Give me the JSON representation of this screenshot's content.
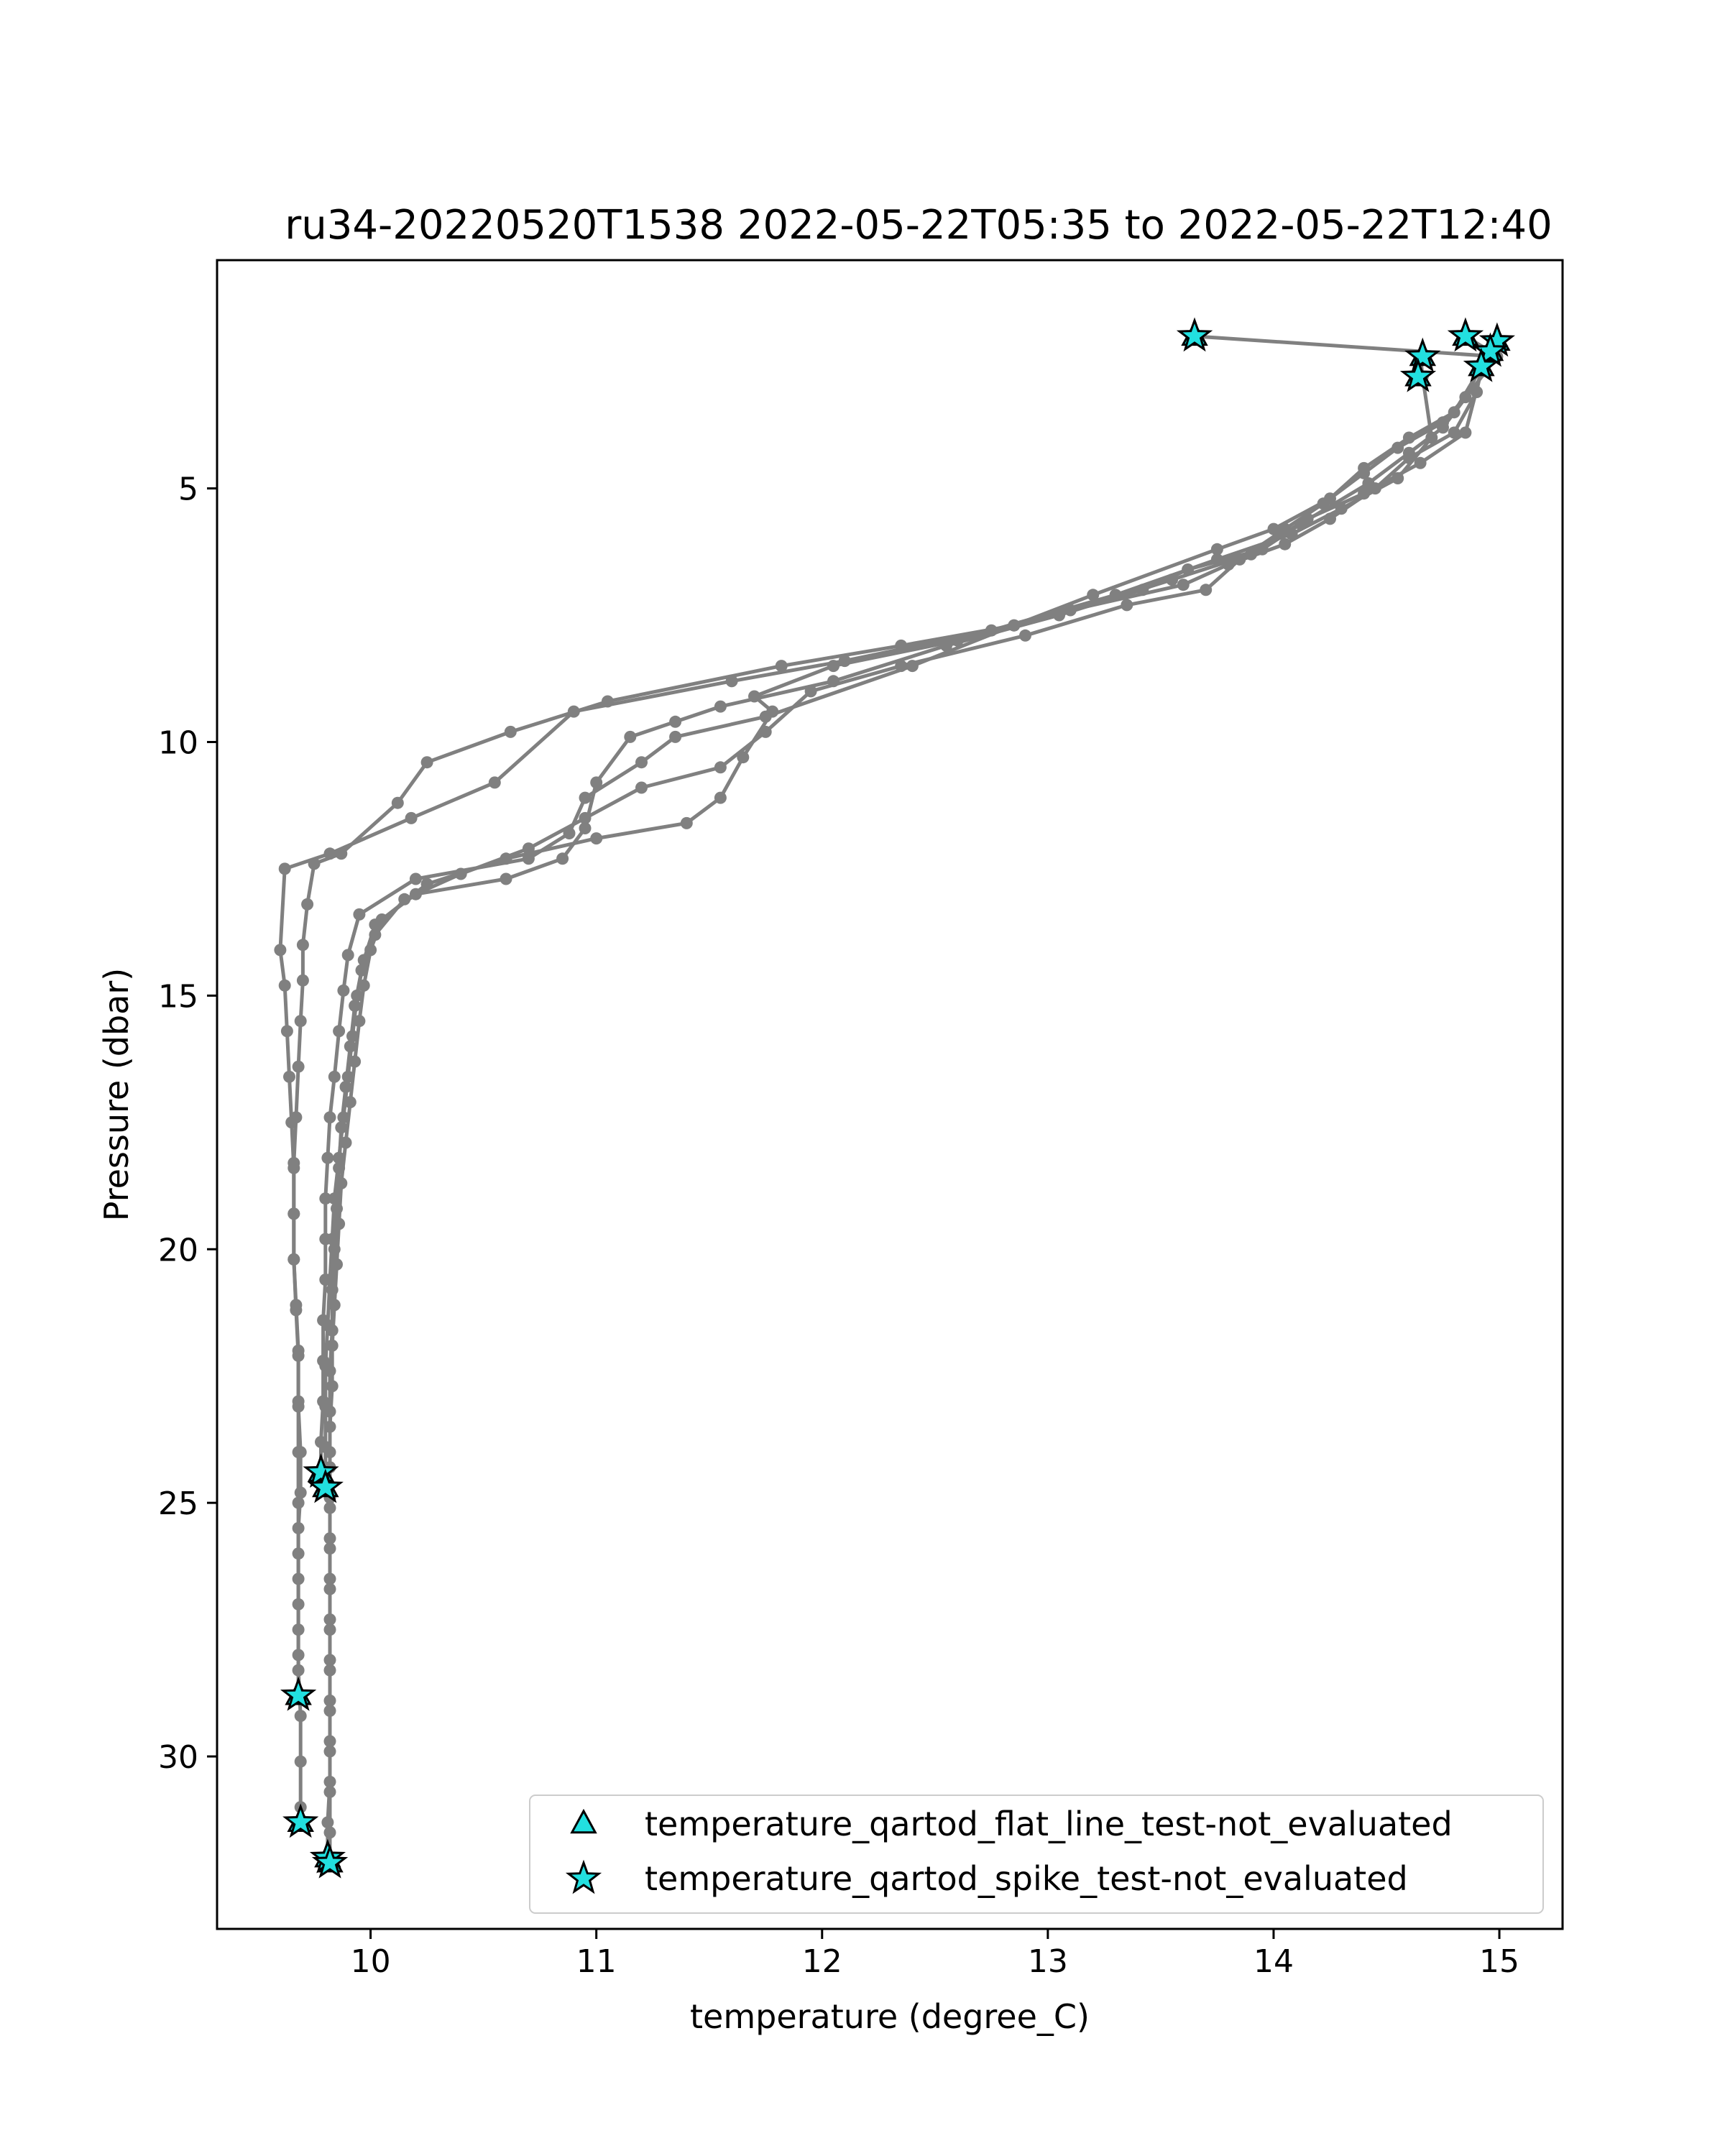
{
  "chart_data": {
    "type": "line",
    "title": "ru34-20220520T1538 2022-05-22T05:35 to 2022-05-22T12:40",
    "xlabel": "temperature (degree_C)",
    "ylabel": "Pressure (dbar)",
    "xlim": [
      9.32,
      15.28
    ],
    "ylim": [
      33.4,
      0.5
    ],
    "y_inverted": true,
    "xticks": [
      10,
      11,
      12,
      13,
      14,
      15
    ],
    "yticks": [
      5,
      10,
      15,
      20,
      25,
      30
    ],
    "grid": false,
    "legend_position": "lower-right",
    "colors": {
      "profile": "#808080",
      "marker_fill": "#22e0e0",
      "marker_edge": "#000000"
    },
    "series": [
      {
        "points": [
          [
            13.65,
            2.0
          ],
          [
            14.99,
            2.4
          ],
          [
            14.75,
            3.8
          ],
          [
            14.6,
            4.3
          ],
          [
            14.42,
            4.9
          ],
          [
            14.12,
            5.7
          ],
          [
            13.95,
            6.2
          ],
          [
            13.62,
            6.6
          ],
          [
            13.42,
            7.0
          ],
          [
            12.85,
            7.7
          ],
          [
            12.35,
            8.1
          ],
          [
            11.82,
            8.5
          ],
          [
            11.05,
            9.2
          ],
          [
            10.62,
            9.8
          ],
          [
            10.25,
            10.4
          ],
          [
            10.12,
            11.2
          ],
          [
            9.87,
            12.2
          ],
          [
            9.75,
            12.4
          ],
          [
            9.72,
            13.2
          ],
          [
            9.7,
            14.0
          ],
          [
            9.7,
            14.7
          ],
          [
            9.69,
            15.5
          ],
          [
            9.68,
            16.4
          ],
          [
            9.67,
            17.4
          ],
          [
            9.66,
            18.3
          ],
          [
            9.66,
            19.3
          ],
          [
            9.66,
            20.2
          ],
          [
            9.67,
            21.2
          ],
          [
            9.68,
            22.1
          ],
          [
            9.68,
            23.1
          ],
          [
            9.69,
            24.0
          ],
          [
            9.69,
            24.8
          ],
          [
            9.68,
            25.5
          ],
          [
            9.68,
            26.5
          ],
          [
            9.68,
            27.5
          ],
          [
            9.68,
            28.3
          ],
          [
            9.69,
            29.2
          ],
          [
            9.69,
            30.1
          ],
          [
            9.69,
            31.0
          ],
          [
            9.69,
            31.3
          ]
        ]
      },
      {
        "points": [
          [
            14.65,
            2.4
          ],
          [
            14.66,
            2.8
          ],
          [
            14.7,
            4.0
          ],
          [
            14.55,
            4.8
          ],
          [
            14.3,
            5.4
          ],
          [
            14.08,
            5.9
          ],
          [
            13.75,
            6.4
          ],
          [
            13.3,
            7.1
          ],
          [
            12.75,
            7.8
          ],
          [
            12.1,
            8.4
          ],
          [
            11.6,
            8.8
          ],
          [
            10.9,
            9.4
          ],
          [
            10.55,
            10.8
          ],
          [
            10.18,
            11.5
          ],
          [
            9.82,
            12.2
          ],
          [
            9.62,
            12.5
          ],
          [
            9.6,
            14.1
          ],
          [
            9.62,
            14.8
          ],
          [
            9.63,
            15.7
          ],
          [
            9.64,
            16.6
          ],
          [
            9.65,
            17.5
          ],
          [
            9.66,
            18.4
          ],
          [
            9.66,
            19.3
          ],
          [
            9.66,
            20.2
          ],
          [
            9.67,
            21.1
          ],
          [
            9.68,
            22.0
          ],
          [
            9.68,
            23.0
          ],
          [
            9.68,
            24.0
          ],
          [
            9.68,
            25.0
          ],
          [
            9.68,
            26.0
          ],
          [
            9.68,
            27.0
          ],
          [
            9.68,
            28.0
          ],
          [
            9.68,
            28.8
          ]
        ]
      },
      {
        "points": [
          [
            14.85,
            2.0
          ],
          [
            14.96,
            2.3
          ],
          [
            14.8,
            3.5
          ],
          [
            14.6,
            4.0
          ],
          [
            14.4,
            4.6
          ],
          [
            14.25,
            5.2
          ],
          [
            14.0,
            5.8
          ],
          [
            13.75,
            6.2
          ],
          [
            13.2,
            7.1
          ],
          [
            12.85,
            7.7
          ],
          [
            12.4,
            8.5
          ],
          [
            11.75,
            9.5
          ],
          [
            11.35,
            9.9
          ],
          [
            11.2,
            10.4
          ],
          [
            10.95,
            11.1
          ],
          [
            10.88,
            11.8
          ],
          [
            10.7,
            12.3
          ],
          [
            10.2,
            12.7
          ],
          [
            9.95,
            13.4
          ],
          [
            9.9,
            14.2
          ],
          [
            9.88,
            14.9
          ],
          [
            9.86,
            15.7
          ],
          [
            9.84,
            16.6
          ],
          [
            9.82,
            17.4
          ],
          [
            9.81,
            18.2
          ],
          [
            9.8,
            19.0
          ],
          [
            9.8,
            19.8
          ],
          [
            9.8,
            20.6
          ],
          [
            9.79,
            21.4
          ],
          [
            9.79,
            22.2
          ],
          [
            9.79,
            23.0
          ],
          [
            9.78,
            23.8
          ],
          [
            9.78,
            24.4
          ]
        ]
      },
      {
        "points": [
          [
            14.97,
            2.1
          ],
          [
            14.92,
            2.7
          ],
          [
            14.85,
            3.9
          ],
          [
            14.65,
            4.5
          ],
          [
            14.4,
            5.1
          ],
          [
            14.15,
            5.6
          ],
          [
            13.9,
            6.3
          ],
          [
            13.55,
            6.8
          ],
          [
            13.05,
            7.5
          ],
          [
            12.55,
            8.1
          ],
          [
            12.05,
            8.8
          ],
          [
            11.55,
            9.3
          ],
          [
            11.35,
            9.6
          ],
          [
            11.15,
            9.9
          ],
          [
            11.0,
            10.8
          ],
          [
            10.95,
            11.7
          ],
          [
            10.85,
            12.3
          ],
          [
            10.6,
            12.7
          ],
          [
            10.2,
            13.0
          ],
          [
            10.02,
            13.6
          ],
          [
            9.97,
            14.3
          ],
          [
            9.94,
            15.0
          ],
          [
            9.92,
            15.8
          ],
          [
            9.9,
            16.6
          ],
          [
            9.88,
            17.4
          ],
          [
            9.86,
            18.2
          ],
          [
            9.84,
            19.0
          ],
          [
            9.83,
            19.8
          ],
          [
            9.82,
            20.6
          ],
          [
            9.81,
            21.5
          ],
          [
            9.8,
            22.3
          ],
          [
            9.8,
            23.1
          ],
          [
            9.8,
            23.9
          ],
          [
            9.8,
            24.7
          ]
        ]
      },
      {
        "points": [
          [
            14.92,
            2.6
          ],
          [
            14.9,
            3.1
          ],
          [
            14.8,
            3.9
          ],
          [
            14.6,
            4.4
          ],
          [
            14.45,
            5.0
          ],
          [
            14.25,
            5.6
          ],
          [
            14.05,
            6.1
          ],
          [
            13.8,
            6.5
          ],
          [
            13.6,
            6.9
          ],
          [
            13.1,
            7.4
          ],
          [
            12.6,
            8.0
          ],
          [
            12.05,
            8.5
          ],
          [
            11.7,
            9.1
          ],
          [
            11.78,
            9.4
          ],
          [
            11.65,
            10.3
          ],
          [
            11.55,
            11.1
          ],
          [
            11.4,
            11.6
          ],
          [
            11.0,
            11.9
          ],
          [
            10.6,
            12.3
          ],
          [
            10.25,
            12.8
          ],
          [
            10.05,
            13.5
          ],
          [
            10.0,
            14.1
          ],
          [
            9.97,
            14.8
          ],
          [
            9.95,
            15.5
          ],
          [
            9.93,
            16.3
          ],
          [
            9.91,
            17.1
          ],
          [
            9.89,
            17.9
          ],
          [
            9.87,
            18.7
          ],
          [
            9.86,
            19.5
          ],
          [
            9.85,
            20.3
          ],
          [
            9.84,
            21.1
          ],
          [
            9.83,
            21.9
          ],
          [
            9.83,
            22.7
          ],
          [
            9.82,
            23.5
          ],
          [
            9.82,
            24.3
          ],
          [
            9.82,
            25.1
          ],
          [
            9.82,
            25.9
          ],
          [
            9.82,
            26.7
          ],
          [
            9.82,
            27.5
          ],
          [
            9.82,
            28.3
          ],
          [
            9.82,
            29.1
          ],
          [
            9.82,
            29.9
          ],
          [
            9.82,
            30.7
          ],
          [
            9.82,
            31.5
          ],
          [
            9.82,
            32.1
          ]
        ]
      },
      {
        "points": [
          [
            14.93,
            2.5
          ],
          [
            14.85,
            3.2
          ],
          [
            14.75,
            3.7
          ],
          [
            14.55,
            4.2
          ],
          [
            14.4,
            4.7
          ],
          [
            14.22,
            5.3
          ],
          [
            14.05,
            5.8
          ],
          [
            13.85,
            6.4
          ],
          [
            13.7,
            7.0
          ],
          [
            13.35,
            7.3
          ],
          [
            12.9,
            7.9
          ],
          [
            12.35,
            8.5
          ],
          [
            11.95,
            9.0
          ],
          [
            11.75,
            9.8
          ],
          [
            11.55,
            10.5
          ],
          [
            11.2,
            10.9
          ],
          [
            10.95,
            11.5
          ],
          [
            10.7,
            12.1
          ],
          [
            10.4,
            12.6
          ],
          [
            10.15,
            13.1
          ],
          [
            10.02,
            13.8
          ],
          [
            9.96,
            14.5
          ],
          [
            9.93,
            15.2
          ],
          [
            9.91,
            16.0
          ],
          [
            9.89,
            16.8
          ],
          [
            9.87,
            17.6
          ],
          [
            9.86,
            18.4
          ],
          [
            9.85,
            19.2
          ],
          [
            9.84,
            20.0
          ],
          [
            9.83,
            20.8
          ],
          [
            9.83,
            21.6
          ],
          [
            9.82,
            22.4
          ],
          [
            9.82,
            23.2
          ],
          [
            9.82,
            24.0
          ],
          [
            9.82,
            24.9
          ],
          [
            9.82,
            25.7
          ],
          [
            9.82,
            26.5
          ],
          [
            9.82,
            27.3
          ],
          [
            9.82,
            28.1
          ],
          [
            9.82,
            28.9
          ],
          [
            9.82,
            29.7
          ],
          [
            9.82,
            30.5
          ],
          [
            9.81,
            31.3
          ],
          [
            9.81,
            32.0
          ]
        ]
      }
    ],
    "flag_markers": {
      "flat_line": [
        [
          13.65,
          2.0
        ],
        [
          14.85,
          2.0
        ],
        [
          14.99,
          2.1
        ],
        [
          14.66,
          2.4
        ],
        [
          14.96,
          2.3
        ],
        [
          14.92,
          2.6
        ],
        [
          14.64,
          2.8
        ],
        [
          9.78,
          24.4
        ],
        [
          9.8,
          24.7
        ],
        [
          9.68,
          28.8
        ],
        [
          9.69,
          31.3
        ],
        [
          9.81,
          32.0
        ],
        [
          9.82,
          32.1
        ]
      ],
      "spike": [
        [
          13.65,
          2.0
        ],
        [
          14.85,
          2.0
        ],
        [
          14.99,
          2.1
        ],
        [
          14.66,
          2.4
        ],
        [
          14.96,
          2.3
        ],
        [
          14.92,
          2.6
        ],
        [
          14.64,
          2.8
        ],
        [
          9.78,
          24.4
        ],
        [
          9.8,
          24.7
        ],
        [
          9.68,
          28.8
        ],
        [
          9.69,
          31.3
        ],
        [
          9.81,
          32.0
        ],
        [
          9.82,
          32.1
        ]
      ]
    },
    "legend": [
      {
        "label": "temperature_qartod_flat_line_test-not_evaluated",
        "marker": "triangle"
      },
      {
        "label": "temperature_qartod_spike_test-not_evaluated",
        "marker": "star"
      }
    ]
  }
}
